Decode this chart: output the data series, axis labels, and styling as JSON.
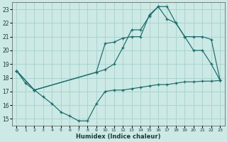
{
  "xlabel": "Humidex (Indice chaleur)",
  "background_color": "#cce9e5",
  "grid_color": "#aad4cf",
  "line_color": "#1a6b6b",
  "xlim": [
    -0.5,
    23.5
  ],
  "ylim": [
    14.5,
    23.5
  ],
  "xticks": [
    0,
    1,
    2,
    3,
    4,
    5,
    6,
    7,
    8,
    9,
    10,
    11,
    12,
    13,
    14,
    15,
    16,
    17,
    18,
    19,
    20,
    21,
    22,
    23
  ],
  "yticks": [
    15,
    16,
    17,
    18,
    19,
    20,
    21,
    22,
    23
  ],
  "line1_x": [
    0,
    1,
    2,
    3,
    4,
    5,
    6,
    7,
    8,
    9,
    10,
    11,
    12,
    13,
    14,
    15,
    16,
    17,
    18,
    19,
    20,
    21,
    22,
    23
  ],
  "line1_y": [
    18.5,
    17.6,
    17.1,
    16.6,
    16.1,
    15.5,
    15.2,
    14.85,
    14.85,
    16.1,
    17.0,
    17.1,
    17.1,
    17.2,
    17.3,
    17.4,
    17.5,
    17.5,
    17.6,
    17.7,
    17.7,
    17.75,
    17.75,
    17.8
  ],
  "line2_x": [
    0,
    2,
    9,
    10,
    11,
    12,
    13,
    14,
    15,
    16,
    17,
    18,
    19,
    20,
    21,
    22,
    23
  ],
  "line2_y": [
    18.5,
    17.1,
    18.4,
    20.5,
    20.6,
    20.9,
    21.0,
    21.0,
    22.6,
    23.2,
    22.3,
    22.0,
    21.0,
    20.0,
    20.0,
    19.0,
    17.8
  ],
  "line3_x": [
    0,
    2,
    9,
    10,
    11,
    12,
    13,
    14,
    15,
    16,
    17,
    18,
    19,
    20,
    21,
    22,
    23
  ],
  "line3_y": [
    18.5,
    17.1,
    18.4,
    18.6,
    19.0,
    20.2,
    21.5,
    21.5,
    22.5,
    23.2,
    23.2,
    22.0,
    21.0,
    21.0,
    21.0,
    20.8,
    17.8
  ]
}
